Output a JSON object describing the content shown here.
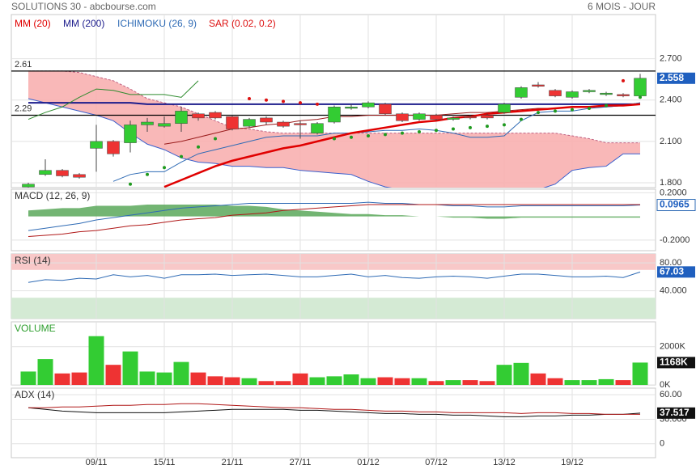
{
  "chart_data": [
    {
      "type": "candlestick",
      "title": "SOLUTIONS 30 - abcbourse.com",
      "subtitle": "6 MOIS - JOUR",
      "categories": [
        null,
        null,
        null,
        null,
        "09/11",
        null,
        null,
        null,
        "15/11",
        null,
        null,
        null,
        "21/11",
        null,
        null,
        null,
        "27/11",
        null,
        null,
        null,
        "01/12",
        null,
        null,
        null,
        "07/12",
        null,
        null,
        null,
        "13/12",
        null,
        null,
        null,
        "19/12",
        null,
        null,
        null,
        null
      ],
      "open": [
        1.77,
        1.86,
        1.89,
        1.86,
        2.05,
        2.1,
        2.09,
        2.22,
        2.21,
        2.23,
        2.3,
        2.31,
        2.28,
        2.21,
        2.27,
        2.24,
        2.23,
        2.16,
        2.24,
        2.34,
        2.35,
        2.37,
        2.3,
        2.26,
        2.29,
        2.26,
        2.28,
        2.29,
        2.31,
        2.42,
        2.51,
        2.47,
        2.42,
        2.46,
        2.44,
        2.44,
        2.43
      ],
      "high": [
        1.8,
        1.97,
        1.9,
        1.87,
        2.22,
        2.11,
        2.25,
        2.27,
        2.28,
        2.35,
        2.31,
        2.32,
        2.29,
        2.27,
        2.28,
        2.25,
        2.25,
        2.24,
        2.36,
        2.37,
        2.39,
        2.38,
        2.31,
        2.31,
        2.3,
        2.28,
        2.29,
        2.3,
        2.38,
        2.5,
        2.53,
        2.48,
        2.47,
        2.48,
        2.46,
        2.45,
        2.59
      ],
      "low": [
        1.76,
        1.85,
        1.84,
        1.83,
        1.88,
        1.99,
        2.02,
        2.17,
        2.2,
        2.17,
        2.25,
        2.26,
        2.18,
        2.2,
        2.22,
        2.2,
        2.12,
        2.15,
        2.23,
        2.33,
        2.34,
        2.29,
        2.24,
        2.25,
        2.25,
        2.25,
        2.26,
        2.26,
        2.3,
        2.41,
        2.49,
        2.42,
        2.41,
        2.45,
        2.43,
        2.42,
        2.42
      ],
      "close": [
        1.79,
        1.89,
        1.85,
        1.84,
        2.1,
        2.01,
        2.22,
        2.24,
        2.23,
        2.32,
        2.27,
        2.27,
        2.19,
        2.26,
        2.24,
        2.21,
        2.22,
        2.23,
        2.35,
        2.35,
        2.38,
        2.3,
        2.25,
        2.3,
        2.26,
        2.27,
        2.27,
        2.27,
        2.37,
        2.49,
        2.5,
        2.43,
        2.46,
        2.47,
        2.45,
        2.43,
        2.558
      ],
      "up_color": "#33cc33",
      "down_color": "#ee3333",
      "lines": [
        {
          "name": "MM (20)",
          "color": "#e00000",
          "values": [
            null,
            null,
            null,
            null,
            null,
            null,
            null,
            null,
            1.77,
            1.82,
            1.87,
            1.92,
            1.96,
            1.99,
            2.02,
            2.05,
            2.07,
            2.1,
            2.13,
            2.16,
            2.18,
            2.2,
            2.22,
            2.24,
            2.25,
            2.27,
            2.28,
            2.3,
            2.31,
            2.32,
            2.33,
            2.34,
            2.35,
            2.35,
            2.36,
            2.36,
            2.37
          ]
        },
        {
          "name": "MM (200)",
          "color": "#1c1c8c",
          "values": [
            2.38,
            2.38,
            2.38,
            2.38,
            2.38,
            2.38,
            2.38,
            2.37,
            2.37,
            2.37,
            2.37,
            2.37,
            2.37,
            2.37,
            2.37,
            2.37,
            2.37,
            2.37,
            2.37,
            2.37,
            2.37,
            2.37,
            2.37,
            2.37,
            2.37,
            2.37,
            2.37,
            2.37,
            2.37,
            2.37,
            2.37,
            2.37,
            2.37,
            2.37,
            2.37,
            2.37,
            2.37
          ]
        }
      ],
      "ichimoku": {
        "name": "ICHIMOKU (26, 9)",
        "color": "#2f6bb5",
        "cloud_color": "#f8b0b0",
        "span_a": {
          "color": "#c06080",
          "values": [
            2.61,
            2.61,
            2.61,
            2.6,
            2.57,
            2.54,
            2.48,
            2.41,
            2.38,
            2.35,
            2.3,
            2.25,
            2.2,
            2.19,
            2.17,
            2.16,
            2.16,
            2.16,
            2.16,
            2.16,
            2.16,
            2.16,
            2.16,
            2.16,
            2.16,
            2.16,
            2.16,
            2.16,
            2.16,
            2.16,
            2.16,
            2.16,
            2.14,
            2.12,
            2.09,
            2.09,
            2.09
          ]
        },
        "span_b": {
          "color": "#3a5fcd",
          "values": [
            2.41,
            2.38,
            2.35,
            2.32,
            2.29,
            2.25,
            2.16,
            2.08,
            2.04,
            1.98,
            1.95,
            1.94,
            1.92,
            1.92,
            1.91,
            1.91,
            1.89,
            1.88,
            1.87,
            1.86,
            1.81,
            1.77,
            1.75,
            1.75,
            1.75,
            1.75,
            1.75,
            1.75,
            1.75,
            1.75,
            1.75,
            1.79,
            1.89,
            1.91,
            1.92,
            2.01,
            2.01
          ]
        },
        "tenkan": {
          "color": "#2f6bb5",
          "values": [
            null,
            null,
            null,
            null,
            null,
            1.81,
            1.86,
            1.88,
            1.88,
            1.95,
            2.01,
            2.04,
            2.07,
            2.1,
            2.13,
            2.14,
            2.14,
            2.14,
            2.16,
            2.16,
            2.17,
            2.18,
            2.18,
            2.19,
            2.18,
            2.16,
            2.13,
            2.13,
            2.14,
            2.25,
            2.31,
            2.32,
            2.32,
            2.34,
            2.35,
            2.36,
            2.38
          ]
        },
        "kijun": {
          "color": "#9a1c1c",
          "values": [
            null,
            null,
            null,
            null,
            null,
            null,
            null,
            null,
            2.08,
            2.1,
            2.13,
            2.16,
            2.19,
            2.2,
            2.22,
            2.23,
            2.25,
            2.26,
            2.28,
            2.28,
            2.29,
            2.29,
            2.29,
            2.29,
            2.29,
            2.3,
            2.31,
            2.31,
            2.32,
            2.33,
            2.34,
            2.34,
            2.35,
            2.35,
            2.35,
            2.36,
            2.38
          ]
        },
        "chikou": {
          "color": "#2e8b2e",
          "values": [
            2.26,
            2.31,
            2.35,
            2.42,
            2.48,
            2.47,
            2.44,
            2.44,
            2.44,
            2.42,
            2.54,
            null,
            null,
            null,
            null,
            null,
            null,
            null,
            null,
            null,
            null,
            null,
            null,
            null,
            null,
            null,
            null,
            null,
            null,
            null,
            null,
            null,
            null,
            null,
            null,
            null,
            null
          ]
        }
      },
      "sar": {
        "name": "SAR (0.02, 0.2)",
        "color": "#dd1111",
        "values": [
          null,
          null,
          null,
          null,
          null,
          null,
          1.79,
          1.86,
          1.91,
          1.99,
          2.06,
          2.12,
          null,
          2.41,
          2.4,
          2.39,
          2.38,
          2.37,
          2.12,
          2.13,
          2.14,
          2.15,
          2.16,
          2.17,
          2.18,
          2.19,
          2.2,
          2.21,
          2.22,
          2.26,
          2.31,
          2.32,
          2.33,
          2.34,
          2.36,
          2.54,
          2.42
        ]
      },
      "hlines": [
        2.61,
        2.29
      ],
      "ylim": [
        1.765,
        3.02
      ],
      "yticks": [
        {
          "value": 2.7,
          "label": "2.700"
        },
        {
          "value": 2.4,
          "label": "2.400"
        },
        {
          "value": 2.1,
          "label": "2.100"
        },
        {
          "value": 1.8,
          "label": "1.800"
        }
      ],
      "grid": true,
      "current": 2.558,
      "current_color": "#1f5fbf"
    },
    {
      "type": "line",
      "title": "MACD (12, 26, 9)",
      "series": [
        {
          "color": "#2f6bb5",
          "values": [
            -0.12,
            -0.1,
            -0.08,
            -0.06,
            -0.03,
            -0.01,
            0.01,
            0.03,
            0.05,
            0.07,
            0.08,
            0.09,
            0.1,
            0.11,
            0.11,
            0.11,
            0.11,
            0.11,
            0.11,
            0.11,
            0.12,
            0.11,
            0.11,
            0.1,
            0.1,
            0.09,
            0.09,
            0.08,
            0.08,
            0.09,
            0.09,
            0.09,
            0.09,
            0.09,
            0.09,
            0.09,
            0.0965
          ]
        },
        {
          "color": "#b01818",
          "values": [
            -0.17,
            -0.16,
            -0.15,
            -0.13,
            -0.12,
            -0.1,
            -0.08,
            -0.07,
            -0.05,
            -0.03,
            -0.02,
            -0.01,
            0.01,
            0.02,
            0.03,
            0.05,
            0.06,
            0.07,
            0.08,
            0.09,
            0.1,
            0.1,
            0.1,
            0.1,
            0.1,
            0.1,
            0.1,
            0.1,
            0.1,
            0.1,
            0.1,
            0.1,
            0.1,
            0.1,
            0.1,
            0.1,
            0.1
          ]
        }
      ],
      "histogram": {
        "color": "#5aa85a",
        "values": [
          0.05,
          0.06,
          0.07,
          0.07,
          0.09,
          0.09,
          0.09,
          0.1,
          0.1,
          0.1,
          0.1,
          0.1,
          0.09,
          0.09,
          0.08,
          0.06,
          0.05,
          0.04,
          0.03,
          0.02,
          0.02,
          0.01,
          0.01,
          0,
          0,
          -0.01,
          -0.01,
          -0.02,
          -0.02,
          -0.01,
          -0.01,
          -0.01,
          -0.01,
          -0.01,
          -0.01,
          -0.01,
          -0.01
        ]
      },
      "ylim": [
        -0.29,
        0.23
      ],
      "yticks": [
        {
          "value": 0.2,
          "label": "0.2000"
        },
        {
          "value": -0.2,
          "label": "-0.2000"
        }
      ],
      "grid": true,
      "current": 0.0965,
      "current_color": "#ffffff"
    },
    {
      "type": "line",
      "title": "RSI (14)",
      "series": [
        {
          "color": "#2f6bb5",
          "values": [
            52,
            56,
            55,
            58,
            57,
            63,
            60,
            62,
            58,
            63,
            63,
            64,
            62,
            63,
            64,
            62,
            60,
            60,
            62,
            64,
            60,
            62,
            59,
            58,
            60,
            61,
            60,
            58,
            61,
            64,
            64,
            62,
            60,
            60,
            61,
            59,
            67.03
          ]
        }
      ],
      "upper_zone": 70,
      "lower_zone": 30,
      "upper_color": "#f8c8c8",
      "lower_color": "#d4ead4",
      "ylim": [
        0,
        93
      ],
      "yticks": [
        {
          "value": 80,
          "label": "80.00"
        },
        {
          "value": 40,
          "label": "40.000"
        }
      ],
      "grid": true,
      "current": 67.03,
      "current_color": "#1f5fbf"
    },
    {
      "type": "bar",
      "title": "VOLUME",
      "title_color": "#2e9e2e",
      "values": [
        700000,
        1350000,
        600000,
        650000,
        2550000,
        1050000,
        1750000,
        700000,
        650000,
        1200000,
        650000,
        450000,
        400000,
        350000,
        200000,
        200000,
        600000,
        400000,
        450000,
        550000,
        350000,
        400000,
        350000,
        350000,
        200000,
        250000,
        250000,
        200000,
        1050000,
        1150000,
        600000,
        350000,
        250000,
        250000,
        300000,
        250000,
        1168000
      ],
      "ylim": [
        0,
        3300000
      ],
      "yticks": [
        {
          "value": 2000000,
          "label": "2000K"
        },
        {
          "value": 0,
          "label": "0K"
        }
      ],
      "grid": true,
      "current": {
        "value": 1168000,
        "label": "1168K"
      },
      "current_color": "#111111"
    },
    {
      "type": "line",
      "title": "ADX (14)",
      "series": [
        {
          "color": "#111111",
          "values": [
            44,
            42,
            40,
            39,
            38,
            38,
            38,
            38,
            38,
            39,
            40,
            41,
            42,
            42,
            42,
            42,
            41,
            41,
            40,
            39,
            38,
            37,
            37,
            36,
            36,
            35,
            35,
            34,
            33,
            33,
            34,
            34,
            35,
            35,
            36,
            36,
            37.517
          ]
        },
        {
          "color": "#b01818",
          "values": [
            44,
            44,
            45,
            45,
            46,
            47,
            47,
            48,
            48,
            49,
            49,
            48,
            47,
            46,
            45,
            44,
            44,
            43,
            42,
            42,
            41,
            40,
            40,
            39,
            39,
            38,
            38,
            38,
            38,
            37,
            38,
            38,
            37,
            37,
            36,
            36,
            36
          ]
        }
      ],
      "ylim": [
        -17,
        68
      ],
      "yticks": [
        {
          "value": 60,
          "label": "60.00"
        },
        {
          "value": 30,
          "label": "30.000"
        },
        0
      ],
      "grid": true,
      "current": 37.517,
      "current_color": "#111111"
    }
  ]
}
